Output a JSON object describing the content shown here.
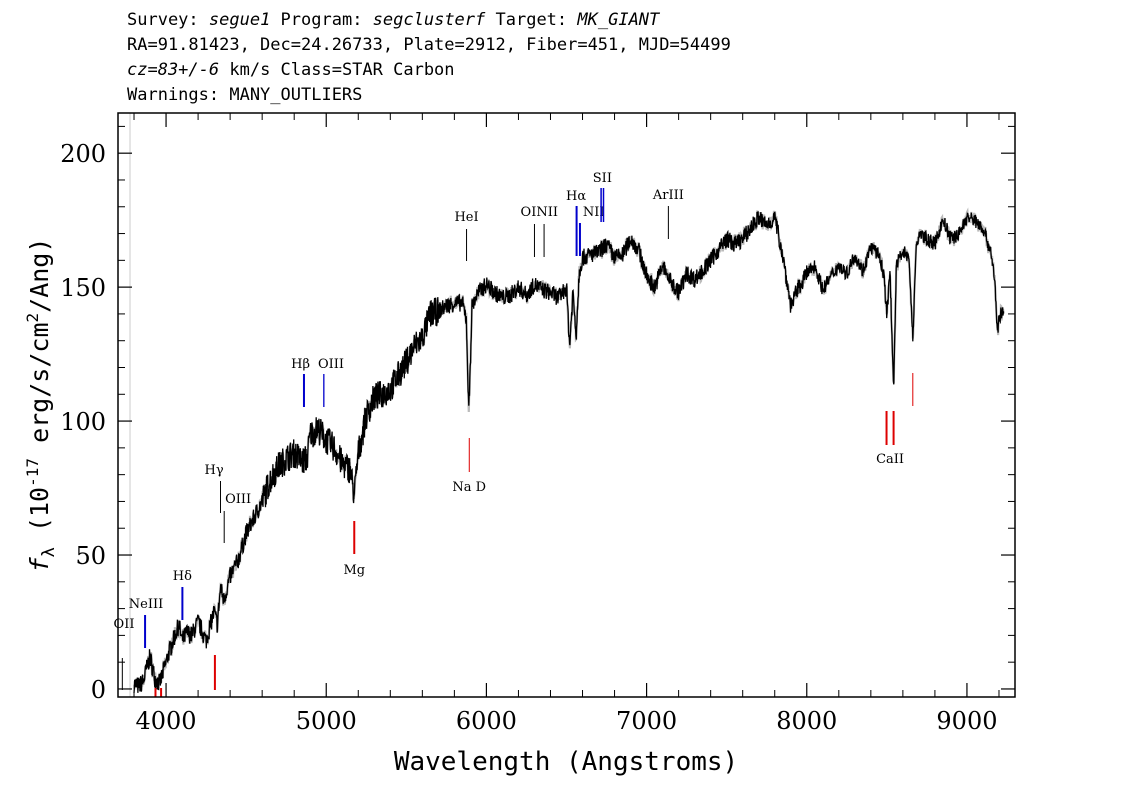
{
  "header": {
    "line1": {
      "survey_label": "Survey: ",
      "survey": "segue1",
      "program_label": " Program: ",
      "program": "segclusterf",
      "target_label": " Target: ",
      "target": "MK_GIANT"
    },
    "line2": "RA=91.81423, Dec=24.26733, Plate=2912, Fiber=451, MJD=54499",
    "line3": {
      "cz": "cz=83+/-6",
      "rest": " km/s Class=STAR Carbon"
    },
    "line4": "Warnings: MANY_OUTLIERS"
  },
  "colors": {
    "spectrum": "#000000",
    "noise": "#bbbbbb",
    "emission": "#0000cc",
    "absorption": "#dd0000",
    "sky": "#000000"
  },
  "chart_data": {
    "type": "line",
    "xlabel": "Wavelength (Angstroms)",
    "ylabel": "f_λ (10^-17 erg/s/cm^2/Ang)",
    "xlim": [
      3700,
      9300
    ],
    "ylim": [
      -3,
      215
    ],
    "xticks": [
      4000,
      5000,
      6000,
      7000,
      8000,
      9000
    ],
    "yticks": [
      0,
      50,
      100,
      150,
      200
    ],
    "grid": false,
    "series": [
      {
        "x": [
          3800,
          3830,
          3860,
          3880,
          3900,
          3930,
          3960,
          3990,
          4020,
          4050,
          4080,
          4100,
          4130,
          4160,
          4200,
          4250,
          4300,
          4320,
          4340,
          4360,
          4400,
          4450,
          4500,
          4550,
          4600,
          4650,
          4700,
          4750,
          4800,
          4850,
          4880,
          4900,
          4950,
          5000,
          5050,
          5100,
          5150,
          5175,
          5200,
          5250,
          5300,
          5350,
          5400,
          5450,
          5500,
          5550,
          5600,
          5650,
          5700,
          5750,
          5800,
          5850,
          5875,
          5890,
          5910,
          5950,
          6000,
          6050,
          6100,
          6150,
          6200,
          6250,
          6300,
          6350,
          6400,
          6450,
          6500,
          6520,
          6540,
          6560,
          6580,
          6600,
          6650,
          6700,
          6750,
          6800,
          6850,
          6900,
          6950,
          7000,
          7050,
          7100,
          7150,
          7200,
          7250,
          7300,
          7350,
          7400,
          7450,
          7500,
          7550,
          7600,
          7650,
          7700,
          7750,
          7800,
          7850,
          7900,
          7950,
          8000,
          8050,
          8100,
          8150,
          8200,
          8250,
          8300,
          8350,
          8400,
          8450,
          8480,
          8500,
          8520,
          8542,
          8560,
          8600,
          8640,
          8662,
          8680,
          8700,
          8750,
          8800,
          8850,
          8900,
          8950,
          9000,
          9050,
          9100,
          9150,
          9170,
          9190,
          9210,
          9230
        ],
        "y": [
          2,
          1,
          3,
          8,
          12,
          4,
          2,
          8,
          14,
          19,
          24,
          18,
          21,
          20,
          25,
          18,
          29,
          24,
          38,
          33,
          42,
          48,
          58,
          64,
          70,
          78,
          83,
          86,
          88,
          85,
          86,
          95,
          97,
          93,
          90,
          84,
          82,
          72,
          88,
          102,
          109,
          110,
          112,
          117,
          122,
          128,
          131,
          140,
          141,
          143,
          144,
          144,
          138,
          103,
          143,
          148,
          151,
          148,
          146,
          147,
          150,
          147,
          151,
          149,
          148,
          146,
          150,
          128,
          148,
          132,
          156,
          161,
          162,
          163,
          166,
          161,
          162,
          168,
          164,
          154,
          150,
          158,
          152,
          148,
          155,
          153,
          156,
          160,
          164,
          168,
          166,
          168,
          172,
          176,
          173,
          176,
          162,
          143,
          150,
          155,
          158,
          149,
          154,
          158,
          155,
          162,
          156,
          165,
          162,
          155,
          140,
          155,
          113,
          158,
          164,
          160,
          130,
          162,
          170,
          168,
          166,
          175,
          168,
          170,
          176,
          175,
          172,
          163,
          155,
          134,
          140,
          141
        ]
      }
    ],
    "annotations": [
      {
        "label": "OII",
        "x": 3727,
        "type": "emission"
      },
      {
        "label": "NeIII",
        "x": 3869,
        "type": "emission"
      },
      {
        "label": "Hδ",
        "x": 4102,
        "type": "emission"
      },
      {
        "label": "Hγ",
        "x": 4340,
        "type": "emission"
      },
      {
        "label": "OIII",
        "x": 4363,
        "type": "emission"
      },
      {
        "label": "Hβ",
        "x": 4861,
        "type": "emission"
      },
      {
        "label": "OIII",
        "x": 4985,
        "type": "emission"
      },
      {
        "label": "HeI",
        "x": 5876,
        "type": "emission"
      },
      {
        "label": "OI",
        "x": 6300,
        "type": "emission"
      },
      {
        "label": "NII",
        "x": 6360,
        "type": "emission"
      },
      {
        "label": "Hα",
        "x": 6563,
        "type": "emission"
      },
      {
        "label": "NII",
        "x": 6584,
        "type": "emission"
      },
      {
        "label": "SII",
        "x": 6724,
        "type": "emission"
      },
      {
        "label": "ArIII",
        "x": 7136,
        "type": "emission"
      },
      {
        "label": "Mg",
        "x": 5175,
        "type": "absorption"
      },
      {
        "label": "Na D",
        "x": 5893,
        "type": "absorption"
      },
      {
        "label": "CaII",
        "x": 8520,
        "type": "absorption"
      }
    ]
  }
}
